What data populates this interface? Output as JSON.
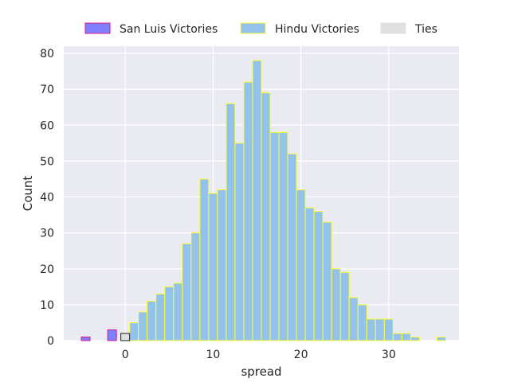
{
  "chart_data": {
    "type": "bar",
    "title": "",
    "xlabel": "spread",
    "ylabel": "Count",
    "xlim": [
      -7,
      38
    ],
    "ylim": [
      0,
      82
    ],
    "xticks": [
      0,
      10,
      20,
      30
    ],
    "yticks": [
      0,
      10,
      20,
      30,
      40,
      50,
      60,
      70,
      80
    ],
    "grid": true,
    "legend_position": "top-center",
    "series": [
      {
        "name": "San Luis Victories",
        "color": "#8080ff",
        "edge_color": "#d81b8a",
        "bins": [
          {
            "x0": -5,
            "x1": -4,
            "count": 1
          },
          {
            "x0": -2,
            "x1": -1,
            "count": 3
          }
        ]
      },
      {
        "name": "Hindu Victories",
        "color": "#93c3ea",
        "edge_color": "#ffff33",
        "bins": [
          {
            "x0": 0.5,
            "x1": 1.5,
            "count": 5
          },
          {
            "x0": 1.5,
            "x1": 2.5,
            "count": 8
          },
          {
            "x0": 2.5,
            "x1": 3.5,
            "count": 11
          },
          {
            "x0": 3.5,
            "x1": 4.5,
            "count": 13
          },
          {
            "x0": 4.5,
            "x1": 5.5,
            "count": 15
          },
          {
            "x0": 5.5,
            "x1": 6.5,
            "count": 16
          },
          {
            "x0": 6.5,
            "x1": 7.5,
            "count": 27
          },
          {
            "x0": 7.5,
            "x1": 8.5,
            "count": 30
          },
          {
            "x0": 8.5,
            "x1": 9.5,
            "count": 45
          },
          {
            "x0": 9.5,
            "x1": 10.5,
            "count": 41
          },
          {
            "x0": 10.5,
            "x1": 11.5,
            "count": 42
          },
          {
            "x0": 11.5,
            "x1": 12.5,
            "count": 66
          },
          {
            "x0": 12.5,
            "x1": 13.5,
            "count": 55
          },
          {
            "x0": 13.5,
            "x1": 14.5,
            "count": 72
          },
          {
            "x0": 14.5,
            "x1": 15.5,
            "count": 78
          },
          {
            "x0": 15.5,
            "x1": 16.5,
            "count": 69
          },
          {
            "x0": 16.5,
            "x1": 17.5,
            "count": 58
          },
          {
            "x0": 17.5,
            "x1": 18.5,
            "count": 58
          },
          {
            "x0": 18.5,
            "x1": 19.5,
            "count": 52
          },
          {
            "x0": 19.5,
            "x1": 20.5,
            "count": 42
          },
          {
            "x0": 20.5,
            "x1": 21.5,
            "count": 37
          },
          {
            "x0": 21.5,
            "x1": 22.5,
            "count": 36
          },
          {
            "x0": 22.5,
            "x1": 23.5,
            "count": 33
          },
          {
            "x0": 23.5,
            "x1": 24.5,
            "count": 20
          },
          {
            "x0": 24.5,
            "x1": 25.5,
            "count": 19
          },
          {
            "x0": 25.5,
            "x1": 26.5,
            "count": 12
          },
          {
            "x0": 26.5,
            "x1": 27.5,
            "count": 10
          },
          {
            "x0": 27.5,
            "x1": 28.5,
            "count": 6
          },
          {
            "x0": 28.5,
            "x1": 29.5,
            "count": 6
          },
          {
            "x0": 29.5,
            "x1": 30.5,
            "count": 6
          },
          {
            "x0": 30.5,
            "x1": 31.5,
            "count": 2
          },
          {
            "x0": 31.5,
            "x1": 32.5,
            "count": 2
          },
          {
            "x0": 32.5,
            "x1": 33.5,
            "count": 1
          },
          {
            "x0": 35.5,
            "x1": 36.5,
            "count": 1
          }
        ]
      },
      {
        "name": "Ties",
        "color": "#e0e0e0",
        "edge_color": "#1a1a1a",
        "bins": [
          {
            "x0": -0.5,
            "x1": 0.5,
            "count": 2
          }
        ]
      }
    ]
  }
}
